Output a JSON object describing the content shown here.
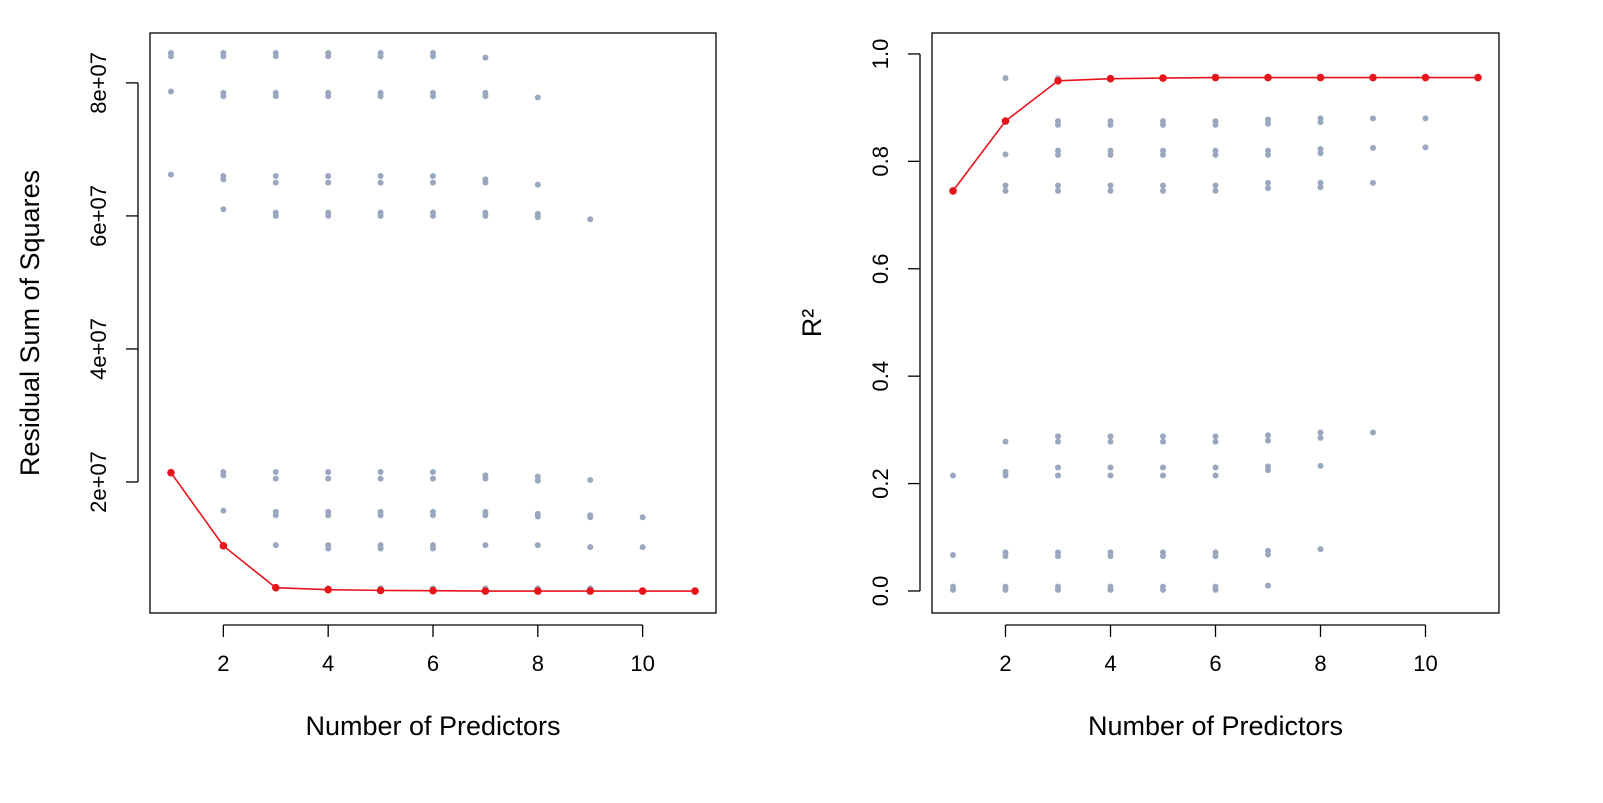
{
  "chart_data": [
    {
      "type": "scatter",
      "x_label": "Number of Predictors",
      "y_label": "Residual Sum of Squares",
      "xlim": [
        0.6,
        11.4
      ],
      "ylim": [
        300000,
        87500000
      ],
      "xticks": [
        2,
        4,
        6,
        8,
        10
      ],
      "yticks": [
        {
          "value": 20000000,
          "label": "2e+07"
        },
        {
          "value": 40000000,
          "label": "4e+07"
        },
        {
          "value": 60000000,
          "label": "6e+07"
        },
        {
          "value": 80000000,
          "label": "8e+07"
        }
      ],
      "series": [
        {
          "color": "#9aa8bf",
          "mode": "points",
          "x": [
            1,
            1,
            1,
            1,
            1,
            2,
            2,
            2,
            2,
            2,
            2,
            2,
            2,
            2,
            2,
            2,
            3,
            3,
            3,
            3,
            3,
            3,
            3,
            3,
            3,
            3,
            3,
            3,
            3,
            3,
            4,
            4,
            4,
            4,
            4,
            4,
            4,
            4,
            4,
            4,
            4,
            4,
            4,
            4,
            4,
            5,
            5,
            5,
            5,
            5,
            5,
            5,
            5,
            5,
            5,
            5,
            5,
            5,
            5,
            5,
            6,
            6,
            6,
            6,
            6,
            6,
            6,
            6,
            6,
            6,
            6,
            6,
            6,
            6,
            6,
            7,
            7,
            7,
            7,
            7,
            7,
            7,
            7,
            7,
            7,
            7,
            7,
            7,
            8,
            8,
            8,
            8,
            8,
            8,
            8,
            8,
            8,
            8,
            9,
            9,
            9,
            9,
            9,
            9,
            10,
            10
          ],
          "values": [
            84500000,
            84000000,
            78700000,
            66200000,
            21500000,
            84500000,
            84000000,
            78500000,
            78000000,
            66000000,
            65500000,
            61000000,
            21500000,
            21000000,
            15700000,
            10500000,
            84500000,
            84000000,
            78500000,
            78000000,
            66000000,
            65000000,
            60500000,
            60000000,
            21500000,
            20500000,
            15500000,
            15000000,
            10500000,
            4200000,
            84500000,
            84000000,
            78500000,
            78000000,
            66000000,
            65000000,
            60500000,
            60000000,
            21500000,
            20500000,
            15500000,
            15000000,
            10500000,
            10000000,
            4000000,
            84500000,
            84000000,
            78500000,
            78000000,
            66000000,
            65000000,
            60500000,
            60000000,
            21500000,
            20500000,
            15500000,
            15000000,
            10500000,
            10000000,
            4000000,
            84500000,
            84000000,
            78500000,
            78000000,
            66000000,
            65000000,
            60500000,
            60000000,
            21500000,
            20500000,
            15500000,
            15000000,
            10500000,
            10000000,
            4000000,
            83800000,
            78500000,
            78000000,
            65500000,
            65000000,
            60500000,
            60000000,
            21000000,
            20500000,
            15500000,
            15000000,
            10500000,
            4000000,
            77800000,
            64700000,
            60300000,
            59800000,
            20800000,
            20200000,
            15200000,
            14800000,
            10500000,
            4000000,
            59500000,
            20300000,
            15000000,
            14700000,
            10200000,
            4000000,
            14700000,
            10200000
          ]
        },
        {
          "color": "#e8141c",
          "mode": "line+points",
          "x": [
            1,
            2,
            3,
            4,
            5,
            6,
            7,
            8,
            9,
            10,
            11
          ],
          "values": [
            21400000,
            10400000,
            4100000,
            3800000,
            3700000,
            3650000,
            3600000,
            3600000,
            3600000,
            3600000,
            3600000
          ]
        }
      ]
    },
    {
      "type": "scatter",
      "x_label": "Number of Predictors",
      "y_label": "R²",
      "xlim": [
        0.6,
        11.4
      ],
      "ylim": [
        -0.041,
        1.039
      ],
      "xticks": [
        2,
        4,
        6,
        8,
        10
      ],
      "yticks": [
        {
          "value": 0,
          "label": "0.0"
        },
        0.2,
        0.4,
        0.6,
        0.8,
        {
          "value": 1,
          "label": "1.0"
        }
      ],
      "series": [
        {
          "color": "#9aa8bf",
          "mode": "points",
          "x": [
            1,
            1,
            1,
            1,
            2,
            2,
            2,
            2,
            2,
            2,
            2,
            2,
            2,
            2,
            2,
            3,
            3,
            3,
            3,
            3,
            3,
            3,
            3,
            3,
            3,
            3,
            3,
            3,
            3,
            3,
            4,
            4,
            4,
            4,
            4,
            4,
            4,
            4,
            4,
            4,
            4,
            4,
            4,
            4,
            4,
            5,
            5,
            5,
            5,
            5,
            5,
            5,
            5,
            5,
            5,
            5,
            5,
            5,
            5,
            5,
            6,
            6,
            6,
            6,
            6,
            6,
            6,
            6,
            6,
            6,
            6,
            6,
            6,
            6,
            6,
            7,
            7,
            7,
            7,
            7,
            7,
            7,
            7,
            7,
            7,
            7,
            7,
            7,
            7,
            8,
            8,
            8,
            8,
            8,
            8,
            8,
            8,
            8,
            8,
            8,
            9,
            9,
            9,
            9,
            9,
            10,
            10,
            10
          ],
          "values": [
            0.215,
            0.067,
            0.008,
            0.002,
            0.955,
            0.813,
            0.755,
            0.745,
            0.278,
            0.222,
            0.215,
            0.072,
            0.065,
            0.008,
            0.002,
            0.955,
            0.875,
            0.868,
            0.82,
            0.812,
            0.755,
            0.745,
            0.288,
            0.278,
            0.23,
            0.215,
            0.072,
            0.065,
            0.008,
            0.002,
            0.955,
            0.875,
            0.868,
            0.82,
            0.812,
            0.755,
            0.745,
            0.288,
            0.278,
            0.23,
            0.215,
            0.072,
            0.065,
            0.008,
            0.002,
            0.955,
            0.875,
            0.868,
            0.82,
            0.812,
            0.755,
            0.745,
            0.288,
            0.278,
            0.23,
            0.215,
            0.072,
            0.065,
            0.008,
            0.002,
            0.955,
            0.875,
            0.868,
            0.82,
            0.812,
            0.755,
            0.745,
            0.288,
            0.278,
            0.23,
            0.215,
            0.072,
            0.065,
            0.008,
            0.002,
            0.955,
            0.878,
            0.87,
            0.82,
            0.812,
            0.76,
            0.75,
            0.29,
            0.28,
            0.232,
            0.225,
            0.075,
            0.068,
            0.01,
            0.955,
            0.88,
            0.873,
            0.823,
            0.815,
            0.76,
            0.752,
            0.295,
            0.285,
            0.233,
            0.078,
            0.955,
            0.88,
            0.825,
            0.76,
            0.295,
            0.955,
            0.88,
            0.826
          ]
        },
        {
          "color": "#e8141c",
          "mode": "line+points",
          "x": [
            1,
            2,
            3,
            4,
            5,
            6,
            7,
            8,
            9,
            10,
            11
          ],
          "values": [
            0.745,
            0.875,
            0.95,
            0.954,
            0.955,
            0.956,
            0.956,
            0.956,
            0.956,
            0.956,
            0.956
          ]
        }
      ]
    }
  ]
}
